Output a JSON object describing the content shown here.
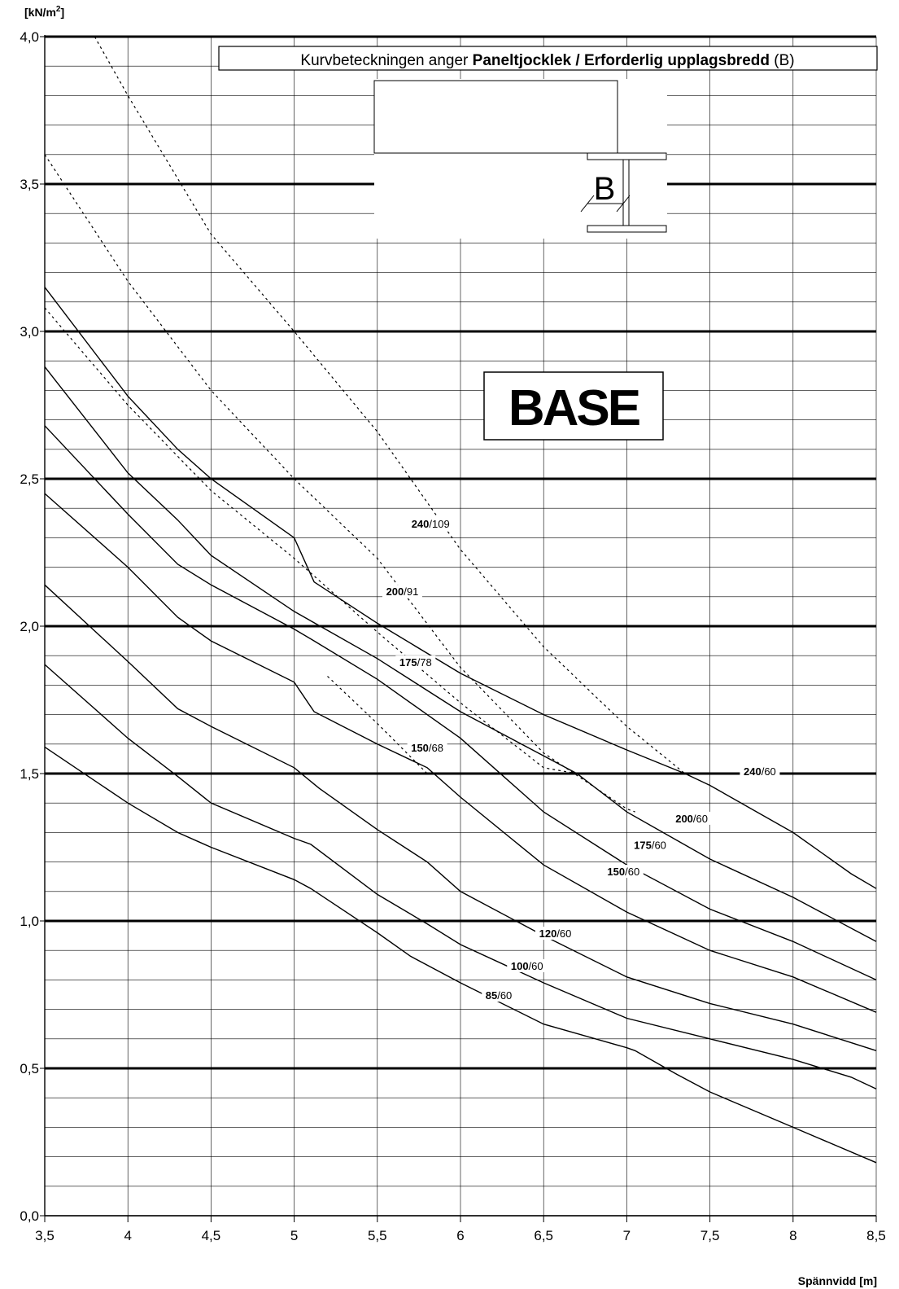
{
  "chart_data": {
    "type": "line",
    "title": "",
    "ylabel": "[kN/m²]",
    "xlabel": "Spännvidd [m]",
    "xlim": [
      3.5,
      8.5
    ],
    "ylim": [
      0,
      4
    ],
    "x_ticks": [
      3.5,
      4,
      4.5,
      5,
      5.5,
      6,
      6.5,
      7,
      7.5,
      8,
      8.5
    ],
    "x_tick_labels": [
      "3,5",
      "4",
      "4,5",
      "5",
      "5,5",
      "6",
      "6,5",
      "7",
      "7,5",
      "8",
      "8,5"
    ],
    "y_ticks": [
      0,
      0.5,
      1,
      1.5,
      2,
      2.5,
      3,
      3.5,
      4
    ],
    "y_tick_labels": [
      "0,0",
      "0,5",
      "1,0",
      "1,5",
      "2,0",
      "2,5",
      "3,0",
      "3,5",
      "4,0"
    ],
    "grid": true,
    "legend_note": {
      "prefix": "Kurvbeteckningen anger ",
      "bold": "Paneltjocklek / Erforderlig upplagsbredd",
      "suffix": " (B)"
    },
    "diagram_label": "B",
    "brand": "BASE",
    "series": [
      {
        "thickness": "85",
        "support": "60",
        "style": "solid",
        "points": [
          [
            3.5,
            1.59
          ],
          [
            4.0,
            1.4
          ],
          [
            4.3,
            1.3
          ],
          [
            4.5,
            1.25
          ],
          [
            5.0,
            1.14
          ],
          [
            5.1,
            1.11
          ],
          [
            5.5,
            0.96
          ],
          [
            5.7,
            0.88
          ],
          [
            6.0,
            0.79
          ],
          [
            6.5,
            0.65
          ],
          [
            7.0,
            0.57
          ],
          [
            7.05,
            0.56
          ],
          [
            7.3,
            0.48
          ],
          [
            7.5,
            0.42
          ],
          [
            8.0,
            0.3
          ],
          [
            8.5,
            0.18
          ]
        ],
        "label_x": 6.23,
        "label_y": 0.74
      },
      {
        "thickness": "100",
        "support": "60",
        "style": "solid",
        "points": [
          [
            3.5,
            1.87
          ],
          [
            4.0,
            1.62
          ],
          [
            4.3,
            1.49
          ],
          [
            4.5,
            1.4
          ],
          [
            5.0,
            1.28
          ],
          [
            5.1,
            1.26
          ],
          [
            5.5,
            1.09
          ],
          [
            5.8,
            0.99
          ],
          [
            6.0,
            0.92
          ],
          [
            6.5,
            0.79
          ],
          [
            7.0,
            0.67
          ],
          [
            7.5,
            0.6
          ],
          [
            8.0,
            0.53
          ],
          [
            8.35,
            0.47
          ],
          [
            8.5,
            0.43
          ]
        ],
        "label_x": 6.4,
        "label_y": 0.84
      },
      {
        "thickness": "120",
        "support": "60",
        "style": "solid",
        "points": [
          [
            3.5,
            2.14
          ],
          [
            4.0,
            1.88
          ],
          [
            4.3,
            1.72
          ],
          [
            4.5,
            1.66
          ],
          [
            5.0,
            1.52
          ],
          [
            5.15,
            1.45
          ],
          [
            5.5,
            1.31
          ],
          [
            5.8,
            1.2
          ],
          [
            6.0,
            1.1
          ],
          [
            6.5,
            0.95
          ],
          [
            7.0,
            0.81
          ],
          [
            7.5,
            0.72
          ],
          [
            8.0,
            0.65
          ],
          [
            8.5,
            0.56
          ]
        ],
        "label_x": 6.57,
        "label_y": 0.95
      },
      {
        "thickness": "150",
        "support": "60",
        "style": "solid",
        "points": [
          [
            3.5,
            2.45
          ],
          [
            4.0,
            2.2
          ],
          [
            4.3,
            2.03
          ],
          [
            4.5,
            1.95
          ],
          [
            5.0,
            1.81
          ],
          [
            5.12,
            1.71
          ],
          [
            5.5,
            1.6
          ],
          [
            5.8,
            1.52
          ],
          [
            6.0,
            1.42
          ],
          [
            6.5,
            1.19
          ],
          [
            7.0,
            1.03
          ],
          [
            7.5,
            0.9
          ],
          [
            8.0,
            0.81
          ],
          [
            8.5,
            0.69
          ]
        ],
        "label_x": 6.98,
        "label_y": 1.16
      },
      {
        "thickness": "175",
        "support": "60",
        "style": "solid",
        "points": [
          [
            3.5,
            2.68
          ],
          [
            4.0,
            2.38
          ],
          [
            4.3,
            2.21
          ],
          [
            4.5,
            2.14
          ],
          [
            5.0,
            1.99
          ],
          [
            5.12,
            1.95
          ],
          [
            5.5,
            1.82
          ],
          [
            6.0,
            1.62
          ],
          [
            6.2,
            1.52
          ],
          [
            6.5,
            1.37
          ],
          [
            7.0,
            1.19
          ],
          [
            7.5,
            1.04
          ],
          [
            8.0,
            0.93
          ],
          [
            8.5,
            0.8
          ]
        ],
        "label_x": 7.14,
        "label_y": 1.25
      },
      {
        "thickness": "200",
        "support": "60",
        "style": "solid",
        "points": [
          [
            3.5,
            2.88
          ],
          [
            4.0,
            2.52
          ],
          [
            4.3,
            2.36
          ],
          [
            4.5,
            2.24
          ],
          [
            5.0,
            2.05
          ],
          [
            5.5,
            1.89
          ],
          [
            6.0,
            1.71
          ],
          [
            6.5,
            1.56
          ],
          [
            6.7,
            1.5
          ],
          [
            7.0,
            1.37
          ],
          [
            7.5,
            1.21
          ],
          [
            8.0,
            1.08
          ],
          [
            8.5,
            0.93
          ]
        ],
        "label_x": 7.39,
        "label_y": 1.34
      },
      {
        "thickness": "240",
        "support": "60",
        "style": "solid",
        "points": [
          [
            3.5,
            3.15
          ],
          [
            4.0,
            2.78
          ],
          [
            4.3,
            2.6
          ],
          [
            4.5,
            2.5
          ],
          [
            5.0,
            2.3
          ],
          [
            5.12,
            2.15
          ],
          [
            5.5,
            2.01
          ],
          [
            6.0,
            1.84
          ],
          [
            6.5,
            1.7
          ],
          [
            7.0,
            1.58
          ],
          [
            7.35,
            1.5
          ],
          [
            7.5,
            1.46
          ],
          [
            8.0,
            1.3
          ],
          [
            8.35,
            1.16
          ],
          [
            8.5,
            1.11
          ]
        ],
        "label_x": 7.8,
        "label_y": 1.5
      },
      {
        "thickness": "150",
        "support": "68",
        "style": "dotted",
        "points": [
          [
            5.2,
            1.83
          ],
          [
            5.5,
            1.67
          ],
          [
            5.8,
            1.5
          ]
        ],
        "label_x": 5.8,
        "label_y": 1.58
      },
      {
        "thickness": "175",
        "support": "78",
        "style": "dotted",
        "points": [
          [
            3.5,
            3.08
          ],
          [
            4.0,
            2.75
          ],
          [
            4.5,
            2.46
          ],
          [
            5.0,
            2.23
          ],
          [
            5.5,
            1.98
          ],
          [
            6.0,
            1.74
          ],
          [
            6.5,
            1.52
          ],
          [
            6.7,
            1.5
          ]
        ],
        "label_x": 5.73,
        "label_y": 1.87
      },
      {
        "thickness": "200",
        "support": "91",
        "style": "dotted",
        "points": [
          [
            3.5,
            3.6
          ],
          [
            4.0,
            3.17
          ],
          [
            4.5,
            2.8
          ],
          [
            5.0,
            2.5
          ],
          [
            5.5,
            2.23
          ],
          [
            6.0,
            1.86
          ],
          [
            6.5,
            1.57
          ],
          [
            7.0,
            1.38
          ],
          [
            7.05,
            1.37
          ]
        ],
        "label_x": 5.65,
        "label_y": 2.11
      },
      {
        "thickness": "240",
        "support": "109",
        "style": "dotted",
        "points": [
          [
            3.8,
            4.0
          ],
          [
            4.0,
            3.8
          ],
          [
            4.5,
            3.33
          ],
          [
            5.0,
            3.0
          ],
          [
            5.5,
            2.66
          ],
          [
            6.0,
            2.26
          ],
          [
            6.5,
            1.93
          ],
          [
            7.0,
            1.66
          ],
          [
            7.35,
            1.5
          ]
        ],
        "label_x": 5.82,
        "label_y": 2.34
      }
    ]
  }
}
